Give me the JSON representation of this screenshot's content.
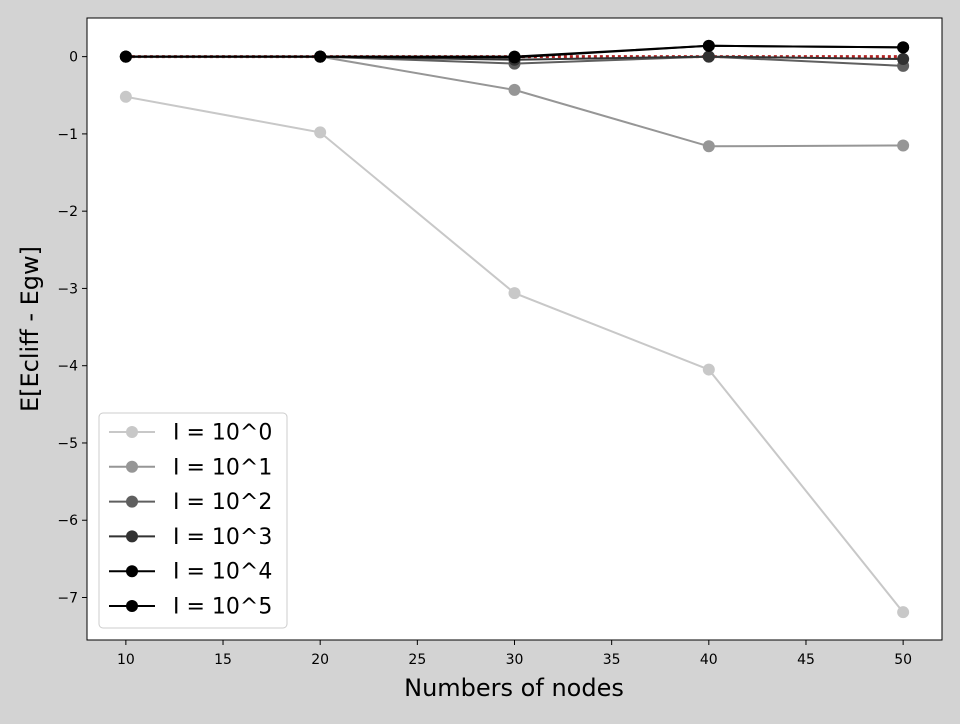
{
  "chart_data": {
    "type": "line",
    "title": "",
    "xlabel": "Numbers of nodes",
    "ylabel": "E[Ecliff - Egw]",
    "x": [
      10,
      20,
      30,
      40,
      50
    ],
    "xlim": [
      8,
      52
    ],
    "ylim": [
      -7.55,
      0.5
    ],
    "xticks": [
      10,
      15,
      20,
      25,
      30,
      35,
      40,
      45,
      50
    ],
    "xtick_labels": [
      "10",
      "15",
      "20",
      "25",
      "30",
      "35",
      "40",
      "45",
      "50"
    ],
    "yticks": [
      0,
      -1,
      -2,
      -3,
      -4,
      -5,
      -6,
      -7
    ],
    "ytick_labels": [
      "0",
      "−1",
      "−2",
      "−3",
      "−4",
      "−5",
      "−6",
      "−7"
    ],
    "grid": false,
    "legend_position": "lower-left",
    "reference_line": {
      "y": 0,
      "color": "#b22222",
      "style": "dotted"
    },
    "series": [
      {
        "name": "I = 10^0",
        "color": "#c8c8c8",
        "values": [
          -0.52,
          -0.98,
          -3.06,
          -4.05,
          -7.19
        ]
      },
      {
        "name": "I = 10^1",
        "color": "#969696",
        "values": [
          0.0,
          0.0,
          -0.43,
          -1.16,
          -1.15
        ]
      },
      {
        "name": "I = 10^2",
        "color": "#5f5f5f",
        "values": [
          0.0,
          0.0,
          -0.09,
          0.0,
          -0.12
        ]
      },
      {
        "name": "I = 10^3",
        "color": "#323232",
        "values": [
          0.0,
          0.0,
          -0.04,
          0.0,
          -0.03
        ]
      },
      {
        "name": "I = 10^4",
        "color": "#000000",
        "values": [
          0.0,
          0.0,
          -0.01,
          0.14,
          0.12
        ]
      },
      {
        "name": "I = 10^5",
        "color": "#000000",
        "values": [
          0.0,
          0.0,
          0.0,
          0.14,
          0.12
        ]
      }
    ]
  }
}
